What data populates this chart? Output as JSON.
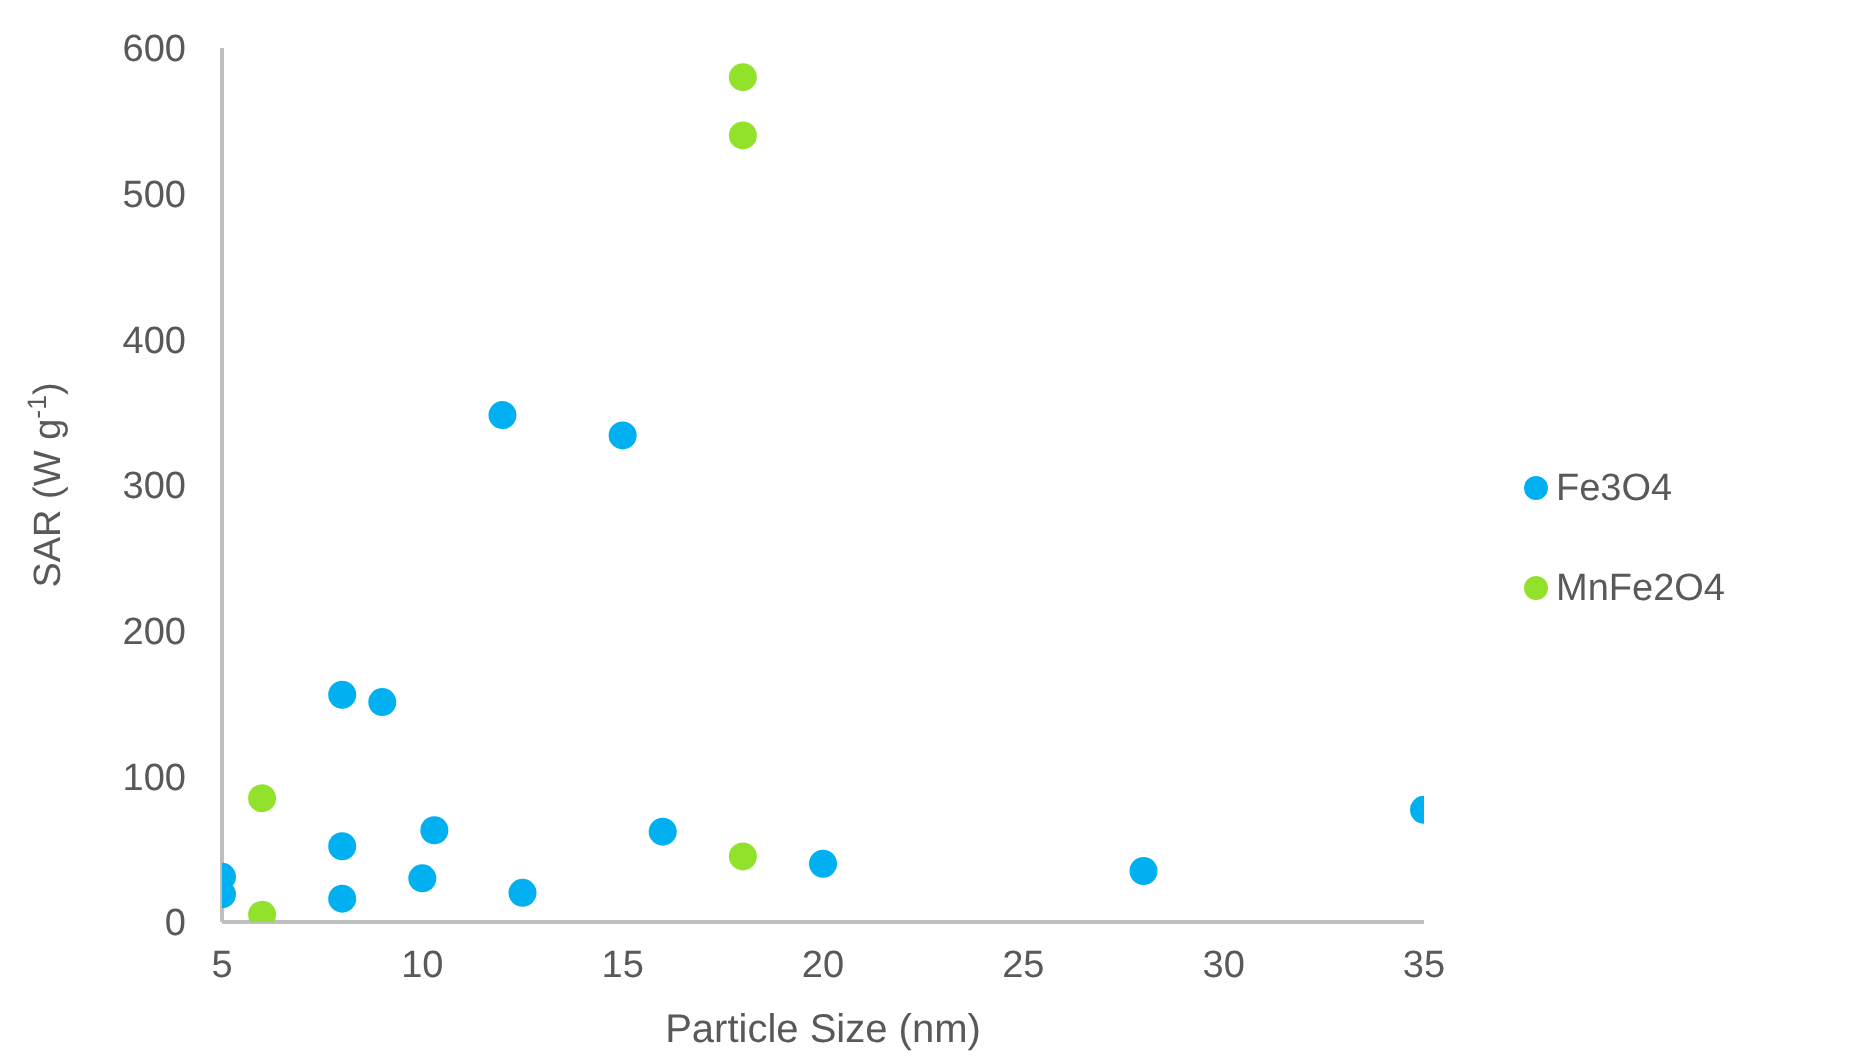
{
  "chart_data": {
    "type": "scatter",
    "xlabel": "Particle Size (nm)",
    "ylabel": "SAR (W g$^{-1}$)",
    "xlim": [
      5,
      35
    ],
    "xticks": [
      5,
      10,
      15,
      20,
      25,
      30,
      35
    ],
    "ylim": [
      0,
      600
    ],
    "yticks": [
      0,
      100,
      200,
      300,
      400,
      500,
      600
    ],
    "grid": false,
    "legend": "right",
    "marker": "circle",
    "series": [
      {
        "name": "Fe3O4",
        "color": "#00b0f0",
        "x": [
          5,
          5,
          8,
          9,
          12,
          15,
          8,
          8,
          10.3,
          10,
          12.5,
          16,
          20,
          28,
          35
        ],
        "values": [
          31,
          19,
          156,
          151,
          348,
          334,
          52,
          16,
          63,
          30,
          20,
          62,
          40,
          35,
          77
        ]
      },
      {
        "name": "MnFe2O4",
        "color": "#92e22c",
        "x": [
          6,
          6,
          18,
          18,
          18
        ],
        "values": [
          85,
          5,
          580,
          540,
          45
        ]
      }
    ]
  }
}
